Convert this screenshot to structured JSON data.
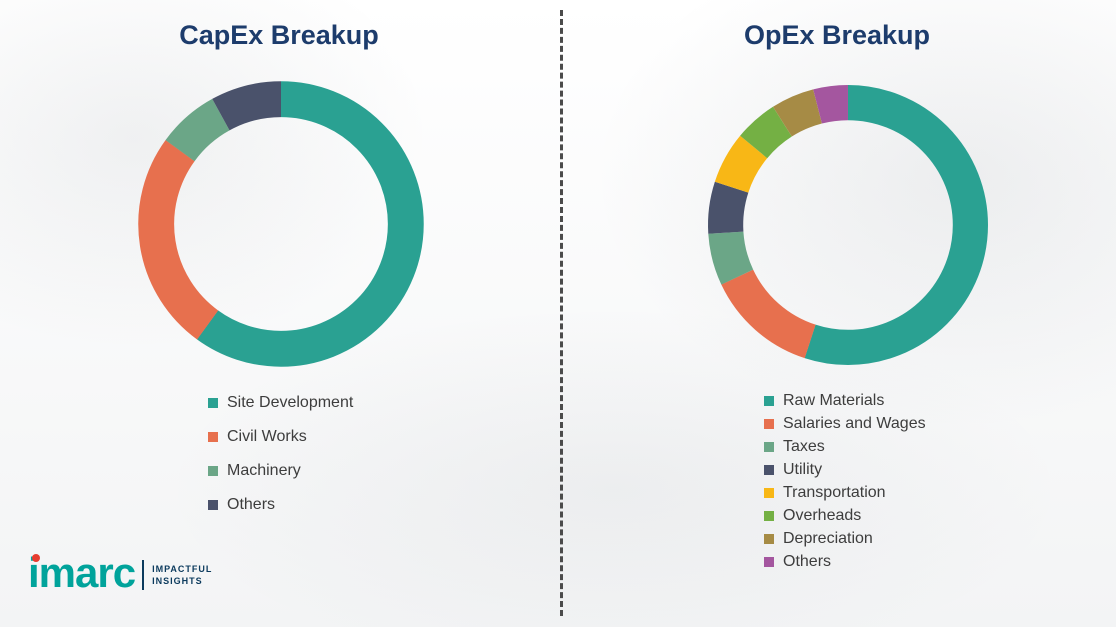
{
  "chart_data": [
    {
      "type": "pie",
      "donut": true,
      "title": "CapEx Breakup",
      "labels": [
        "Site Development",
        "Civil Works",
        "Machinery",
        "Others"
      ],
      "values": [
        60,
        25,
        7,
        8
      ],
      "colors": [
        "#2aa192",
        "#e7704e",
        "#6ba687",
        "#4a526b"
      ],
      "values_note": "estimated percentages; no numeric labels shown in chart",
      "start_angle_deg": 0,
      "direction": "clockwise",
      "legend_position": "below-left"
    },
    {
      "type": "pie",
      "donut": true,
      "title": "OpEx Breakup",
      "labels": [
        "Raw Materials",
        "Salaries and Wages",
        "Taxes",
        "Utility",
        "Transportation",
        "Overheads",
        "Depreciation",
        "Others"
      ],
      "values": [
        55,
        13,
        6,
        6,
        6,
        5,
        5,
        4
      ],
      "colors": [
        "#2aa192",
        "#e7704e",
        "#6ba687",
        "#4a526b",
        "#f8b716",
        "#74b044",
        "#a68b45",
        "#a4569f"
      ],
      "values_note": "estimated percentages; no numeric labels shown in chart",
      "start_angle_deg": 0,
      "direction": "clockwise",
      "legend_position": "below-left"
    }
  ],
  "style": {
    "title_color": "#1d3c6c",
    "legend_text_color": "#3d3d3d",
    "divider_style": "vertical dashed",
    "divider_color": "#4b4b4b"
  },
  "logo": {
    "brand": "imarc",
    "tagline_line1": "IMPACTFUL",
    "tagline_line2": "INSIGHTS",
    "brand_color": "#00a39b",
    "accent_color": "#e63c2f",
    "tagline_color": "#0b3a5d"
  }
}
